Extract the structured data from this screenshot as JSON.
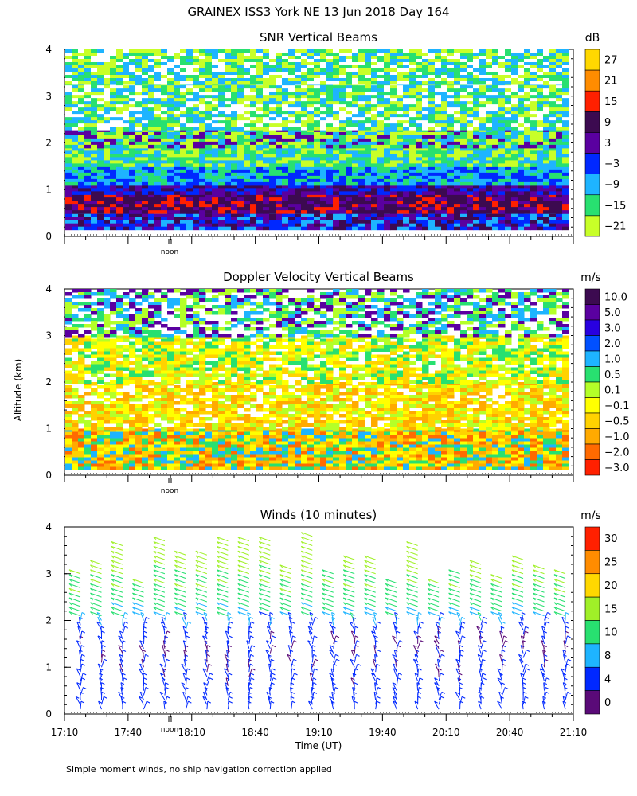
{
  "figure": {
    "title": "GRAINEX ISS3 York NE  13 Jun 2018 Day 164",
    "ylabel": "Altitude (km)",
    "xlabel": "Time (UT)",
    "footnote": "Simple moment winds, no ship navigation correction applied",
    "noon_label": "noon"
  },
  "chart_data": [
    {
      "type": "heatmap",
      "title": "SNR Vertical Beams",
      "colorbar_unit": "dB",
      "ylim": [
        0,
        4
      ],
      "y_ticks": [
        "0",
        "1",
        "2",
        "3",
        "4"
      ],
      "colorbar_labels": [
        "27",
        "21",
        "15",
        "9",
        "3",
        "−3",
        "−9",
        "−15",
        "−21"
      ],
      "colorbar_colors": [
        "#ffd800",
        "#ff8c00",
        "#ff2000",
        "#3c0a50",
        "#5a00a0",
        "#0028ff",
        "#1eb4ff",
        "#28e070",
        "#c8ff28"
      ],
      "layers": [
        {
          "from_km": 0.15,
          "to_km": 0.9,
          "level": "9",
          "note_color": "#3c0a50"
        },
        {
          "from_km": 0.9,
          "to_km": 1.1,
          "level": "3",
          "note_color": "#5a00a0"
        },
        {
          "from_km": 1.1,
          "to_km": 1.5,
          "level": "−9",
          "note_color": "#1eb4ff"
        },
        {
          "from_km": 1.5,
          "to_km": 2.3,
          "level": "−15",
          "note_color": "#28e070"
        },
        {
          "from_km": 2.3,
          "to_km": 4.0,
          "level": "−21",
          "note_color": "#c8ff28"
        }
      ]
    },
    {
      "type": "heatmap",
      "title": "Doppler Velocity Vertical Beams",
      "colorbar_unit": "m/s",
      "ylim": [
        0,
        4
      ],
      "y_ticks": [
        "0",
        "1",
        "2",
        "3",
        "4"
      ],
      "colorbar_labels": [
        "10.0",
        "5.0",
        "3.0",
        "2.0",
        "1.0",
        "0.5",
        "0.1",
        "−0.1",
        "−0.5",
        "−1.0",
        "−2.0",
        "−3.0"
      ],
      "colorbar_colors": [
        "#3c0a50",
        "#5a00a0",
        "#2800e0",
        "#0050ff",
        "#1eb4ff",
        "#28e070",
        "#b4ff28",
        "#ffff00",
        "#ffd200",
        "#ffaa00",
        "#ff6a00",
        "#ff2000"
      ]
    },
    {
      "type": "scatter",
      "title": "Winds (10 minutes)",
      "colorbar_unit": "m/s",
      "ylim": [
        0,
        4
      ],
      "y_ticks": [
        "0",
        "1",
        "2",
        "3",
        "4"
      ],
      "x_ticks": [
        "17:10",
        "17:40",
        "18:10",
        "18:40",
        "19:10",
        "19:40",
        "20:10",
        "20:40",
        "21:10"
      ],
      "colorbar_labels": [
        "30",
        "25",
        "20",
        "15",
        "10",
        "8",
        "4",
        "0"
      ],
      "colorbar_colors": [
        "#ff2000",
        "#ff8c00",
        "#ffd800",
        "#a0f028",
        "#28e070",
        "#1eb4ff",
        "#0028ff",
        "#5a0a78",
        "#000000"
      ],
      "profile_speeds_ms": [
        {
          "altitude_km": 0.5,
          "speed": 6
        },
        {
          "altitude_km": 1.5,
          "speed": 4
        },
        {
          "altitude_km": 2.5,
          "speed": 13
        },
        {
          "altitude_km": 3.5,
          "speed": 18
        }
      ]
    }
  ]
}
